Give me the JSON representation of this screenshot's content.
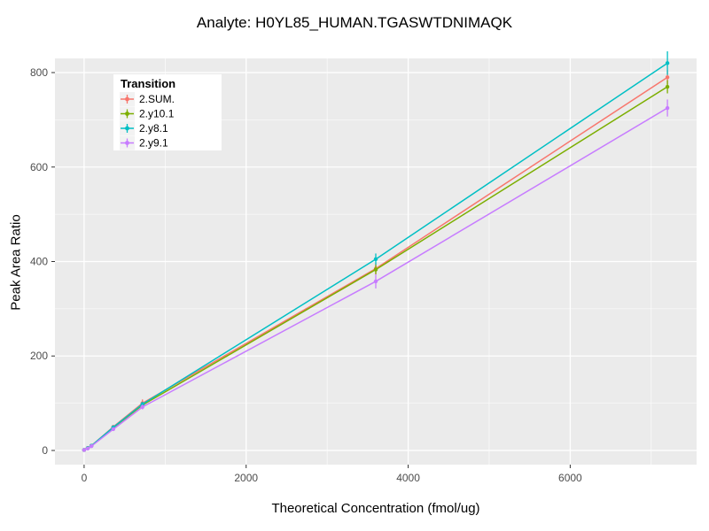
{
  "chart_data": {
    "type": "line",
    "title": "Analyte: H0YL85_HUMAN.TGASWTDNIMAQK",
    "xlabel": "Theoretical Concentration (fmol/ug)",
    "ylabel": "Peak Area Ratio",
    "legend_title": "Transition",
    "xlim": [
      -360,
      7560
    ],
    "ylim": [
      -30,
      830
    ],
    "x_ticks": [
      0,
      2000,
      4000,
      6000
    ],
    "y_ticks": [
      0,
      200,
      400,
      600,
      800
    ],
    "x_minor_ticks": [
      1000,
      3000,
      5000,
      7000
    ],
    "y_minor_ticks": [
      100,
      300,
      500,
      700
    ],
    "grid": true,
    "legend_position": "top-left-inside",
    "panel_color": "#EBEBEB",
    "grid_color": "#FFFFFF",
    "tick_label_color": "#4D4D4D",
    "x": [
      0,
      45,
      90,
      360,
      720,
      3600,
      7200
    ],
    "series": [
      {
        "name": "2.SUM.",
        "color": "#F8766D",
        "values": [
          1,
          5,
          10,
          50,
          100,
          385,
          790
        ],
        "errors": [
          1,
          1,
          2,
          4,
          8,
          12,
          15
        ]
      },
      {
        "name": "2.y10.1",
        "color": "#7CAE00",
        "values": [
          1,
          5,
          10,
          48,
          96,
          383,
          770
        ],
        "errors": [
          1,
          1,
          2,
          3,
          5,
          10,
          14
        ]
      },
      {
        "name": "2.y8.1",
        "color": "#00BFC4",
        "values": [
          1,
          5,
          10,
          49,
          98,
          405,
          820
        ],
        "errors": [
          1,
          1,
          2,
          3,
          5,
          12,
          25
        ]
      },
      {
        "name": "2.y9.1",
        "color": "#C77CFF",
        "values": [
          1,
          4,
          9,
          45,
          92,
          358,
          725
        ],
        "errors": [
          1,
          1,
          2,
          3,
          5,
          15,
          18
        ]
      }
    ]
  }
}
